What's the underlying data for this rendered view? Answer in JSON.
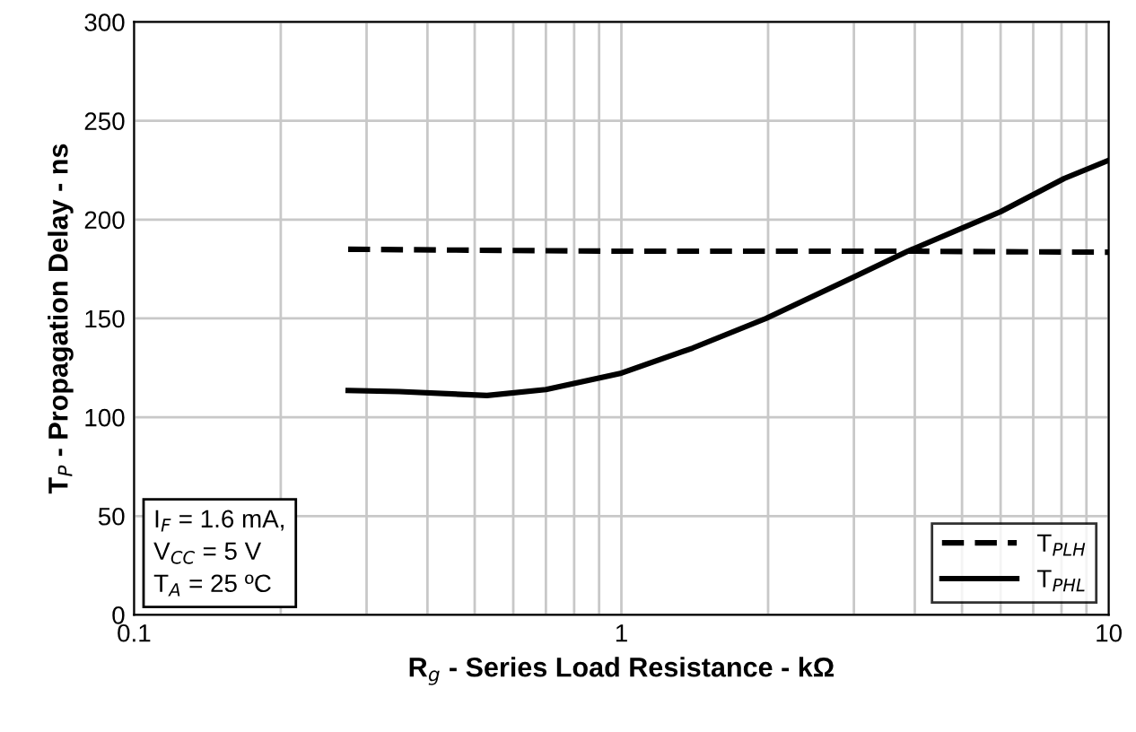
{
  "chart_data": {
    "type": "line",
    "xlabel": "R$_{g}$ - Series Load Resistance - kΩ",
    "ylabel": "T$_{P}$ - Propagation Delay - ns",
    "log": "x",
    "xlim": [
      0.1,
      10
    ],
    "xticks": [
      0.1,
      1,
      10
    ],
    "ylim": [
      0,
      300
    ],
    "yticks": [
      0,
      50,
      100,
      150,
      200,
      250,
      300
    ],
    "grid": true,
    "legend": "bottom right",
    "series": [
      {
        "name": "T$_{PLH}$",
        "color": "#000000",
        "line_style": "dashed",
        "x": [
          0.275,
          0.5,
          1,
          2,
          4,
          10
        ],
        "values": [
          185,
          184.5,
          184,
          184,
          184,
          183.5
        ]
      },
      {
        "name": "T$_{PHL}$",
        "color": "#000000",
        "line_style": "solid",
        "x": [
          0.275,
          0.35,
          0.53,
          0.7,
          1,
          1.4,
          1.98,
          3,
          3.87,
          6,
          8.1,
          10
        ],
        "values": [
          113.5,
          113,
          111,
          114,
          122.3,
          135,
          150,
          171,
          184,
          204,
          220.8,
          230
        ]
      }
    ],
    "annotations": [
      "I$_{F}$ = 1.6 mA,\nV$_{CC}$ = 5 V\nT$_{A}$ = 25 ºC"
    ]
  }
}
